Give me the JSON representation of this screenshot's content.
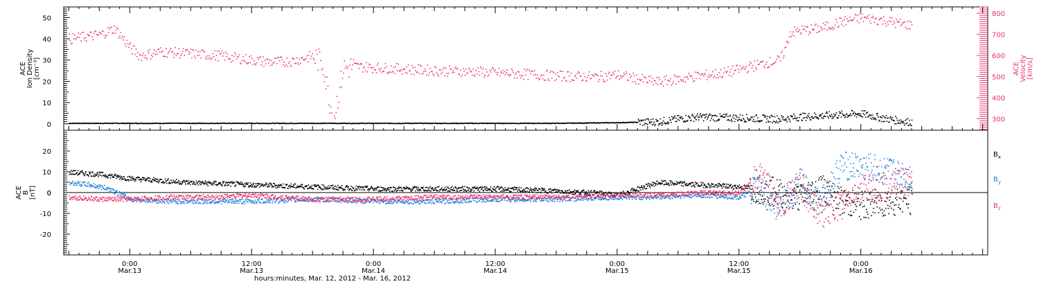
{
  "colors": {
    "black": "#000000",
    "red": "#e8336a",
    "blue": "#1f7fe0"
  },
  "chart_data": [
    {
      "type": "scatter",
      "panel": "top",
      "ylabel_lines": [
        "ACE",
        "Ion Density",
        "[cm⁻³]"
      ],
      "y2label_lines": [
        "ACE",
        "Velocity",
        "[km/s]"
      ],
      "ylim": [
        -3,
        55
      ],
      "y2lim": [
        245,
        830
      ],
      "yticks": [
        0,
        10,
        20,
        30,
        40,
        50
      ],
      "y2ticks": [
        300,
        400,
        500,
        600,
        700,
        800
      ],
      "xlim_hours": [
        -6.5,
        84.5
      ],
      "series": [
        {
          "name": "Ion Density",
          "axis": "left",
          "color": "#000000",
          "x": [
            -6,
            0,
            6,
            12,
            18,
            24,
            30,
            36,
            42,
            48,
            52,
            54,
            56,
            60,
            64,
            66,
            68,
            70,
            72,
            74,
            76,
            77
          ],
          "y": [
            0.5,
            0.5,
            0.5,
            0.5,
            0.5,
            0.5,
            0.5,
            0.5,
            0.5,
            0.8,
            1.2,
            2.5,
            3.5,
            3.0,
            2.5,
            3.5,
            4.0,
            4.5,
            5.0,
            3.0,
            1.5,
            1.0
          ]
        },
        {
          "name": "Velocity",
          "axis": "right",
          "color": "#e8336a",
          "x": [
            -6,
            -3,
            -1.5,
            0,
            1,
            3,
            6,
            9,
            12,
            14,
            16,
            18,
            19,
            20,
            21,
            22,
            24,
            26,
            30,
            34,
            38,
            42,
            46,
            48,
            50,
            52,
            54,
            56,
            58,
            60,
            62,
            64,
            64.5,
            65,
            66,
            68,
            70,
            72,
            74,
            76,
            77
          ],
          "y": [
            680,
            700,
            730,
            640,
            600,
            620,
            610,
            600,
            580,
            570,
            575,
            600,
            560,
            290,
            540,
            550,
            545,
            540,
            530,
            525,
            515,
            505,
            500,
            510,
            490,
            475,
            490,
            505,
            515,
            535,
            560,
            580,
            630,
            710,
            720,
            730,
            760,
            780,
            770,
            750,
            745
          ]
        }
      ]
    },
    {
      "type": "scatter",
      "panel": "bottom",
      "ylabel_lines": [
        "ACE",
        "B",
        "[nT]"
      ],
      "ylim": [
        -30,
        30
      ],
      "yticks": [
        -20,
        -10,
        0,
        10,
        20
      ],
      "xlim_hours": [
        -6.5,
        84.5
      ],
      "x_ticks": [
        {
          "hour": 0,
          "time": "0:00",
          "date": "Mar.13"
        },
        {
          "hour": 12,
          "time": "12:00",
          "date": "Mar.13"
        },
        {
          "hour": 24,
          "time": "0:00",
          "date": "Mar.14"
        },
        {
          "hour": 36,
          "time": "12:00",
          "date": "Mar.14"
        },
        {
          "hour": 48,
          "time": "0:00",
          "date": "Mar.15"
        },
        {
          "hour": 60,
          "time": "12:00",
          "date": "Mar.15"
        },
        {
          "hour": 72,
          "time": "0:00",
          "date": "Mar.16"
        }
      ],
      "xlabel": "hours:minutes, Mar. 12, 2012 - Mar. 16, 2012",
      "series": [
        {
          "name": "Bx",
          "color": "#000000",
          "x": [
            -6,
            -3,
            0,
            6,
            12,
            18,
            24,
            30,
            36,
            42,
            46,
            48,
            50,
            52,
            56,
            60,
            62,
            64,
            66,
            68,
            70,
            72,
            74,
            76,
            77
          ],
          "y": [
            10,
            9,
            7,
            5,
            4,
            3,
            2,
            2,
            2,
            1,
            0,
            -1,
            2,
            5,
            4,
            3,
            2,
            0,
            -2,
            3,
            -4,
            -6,
            -5,
            -3,
            -4
          ]
        },
        {
          "name": "By",
          "color": "#1f7fe0",
          "x": [
            -6,
            -4,
            -2,
            0,
            4,
            8,
            12,
            18,
            24,
            30,
            36,
            42,
            48,
            52,
            56,
            60,
            62,
            64,
            66,
            68,
            70,
            72,
            74,
            76,
            77
          ],
          "y": [
            5,
            4,
            2,
            -3,
            -4,
            -4,
            -4,
            -3,
            -4,
            -4,
            -3,
            -3,
            -2,
            -2,
            -1,
            -2,
            2,
            -8,
            5,
            -5,
            13,
            13,
            11,
            9,
            7
          ]
        },
        {
          "name": "Bz",
          "color": "#e8336a",
          "x": [
            -6,
            -3,
            0,
            4,
            8,
            12,
            18,
            24,
            30,
            36,
            42,
            48,
            52,
            56,
            60,
            62,
            64,
            66,
            68,
            70,
            72,
            74,
            76,
            77
          ],
          "y": [
            -2,
            -3,
            -3,
            -2,
            -2,
            -1,
            -3,
            -3,
            -2,
            -2,
            -2,
            -1,
            -1,
            0,
            0,
            8,
            -5,
            3,
            -10,
            -6,
            2,
            3,
            5,
            6
          ]
        }
      ]
    }
  ],
  "legend": [
    {
      "label": "B",
      "sub": "x",
      "color": "#000000"
    },
    {
      "label": "B",
      "sub": "y",
      "color": "#1f7fe0"
    },
    {
      "label": "B",
      "sub": "z",
      "color": "#e8336a"
    }
  ]
}
